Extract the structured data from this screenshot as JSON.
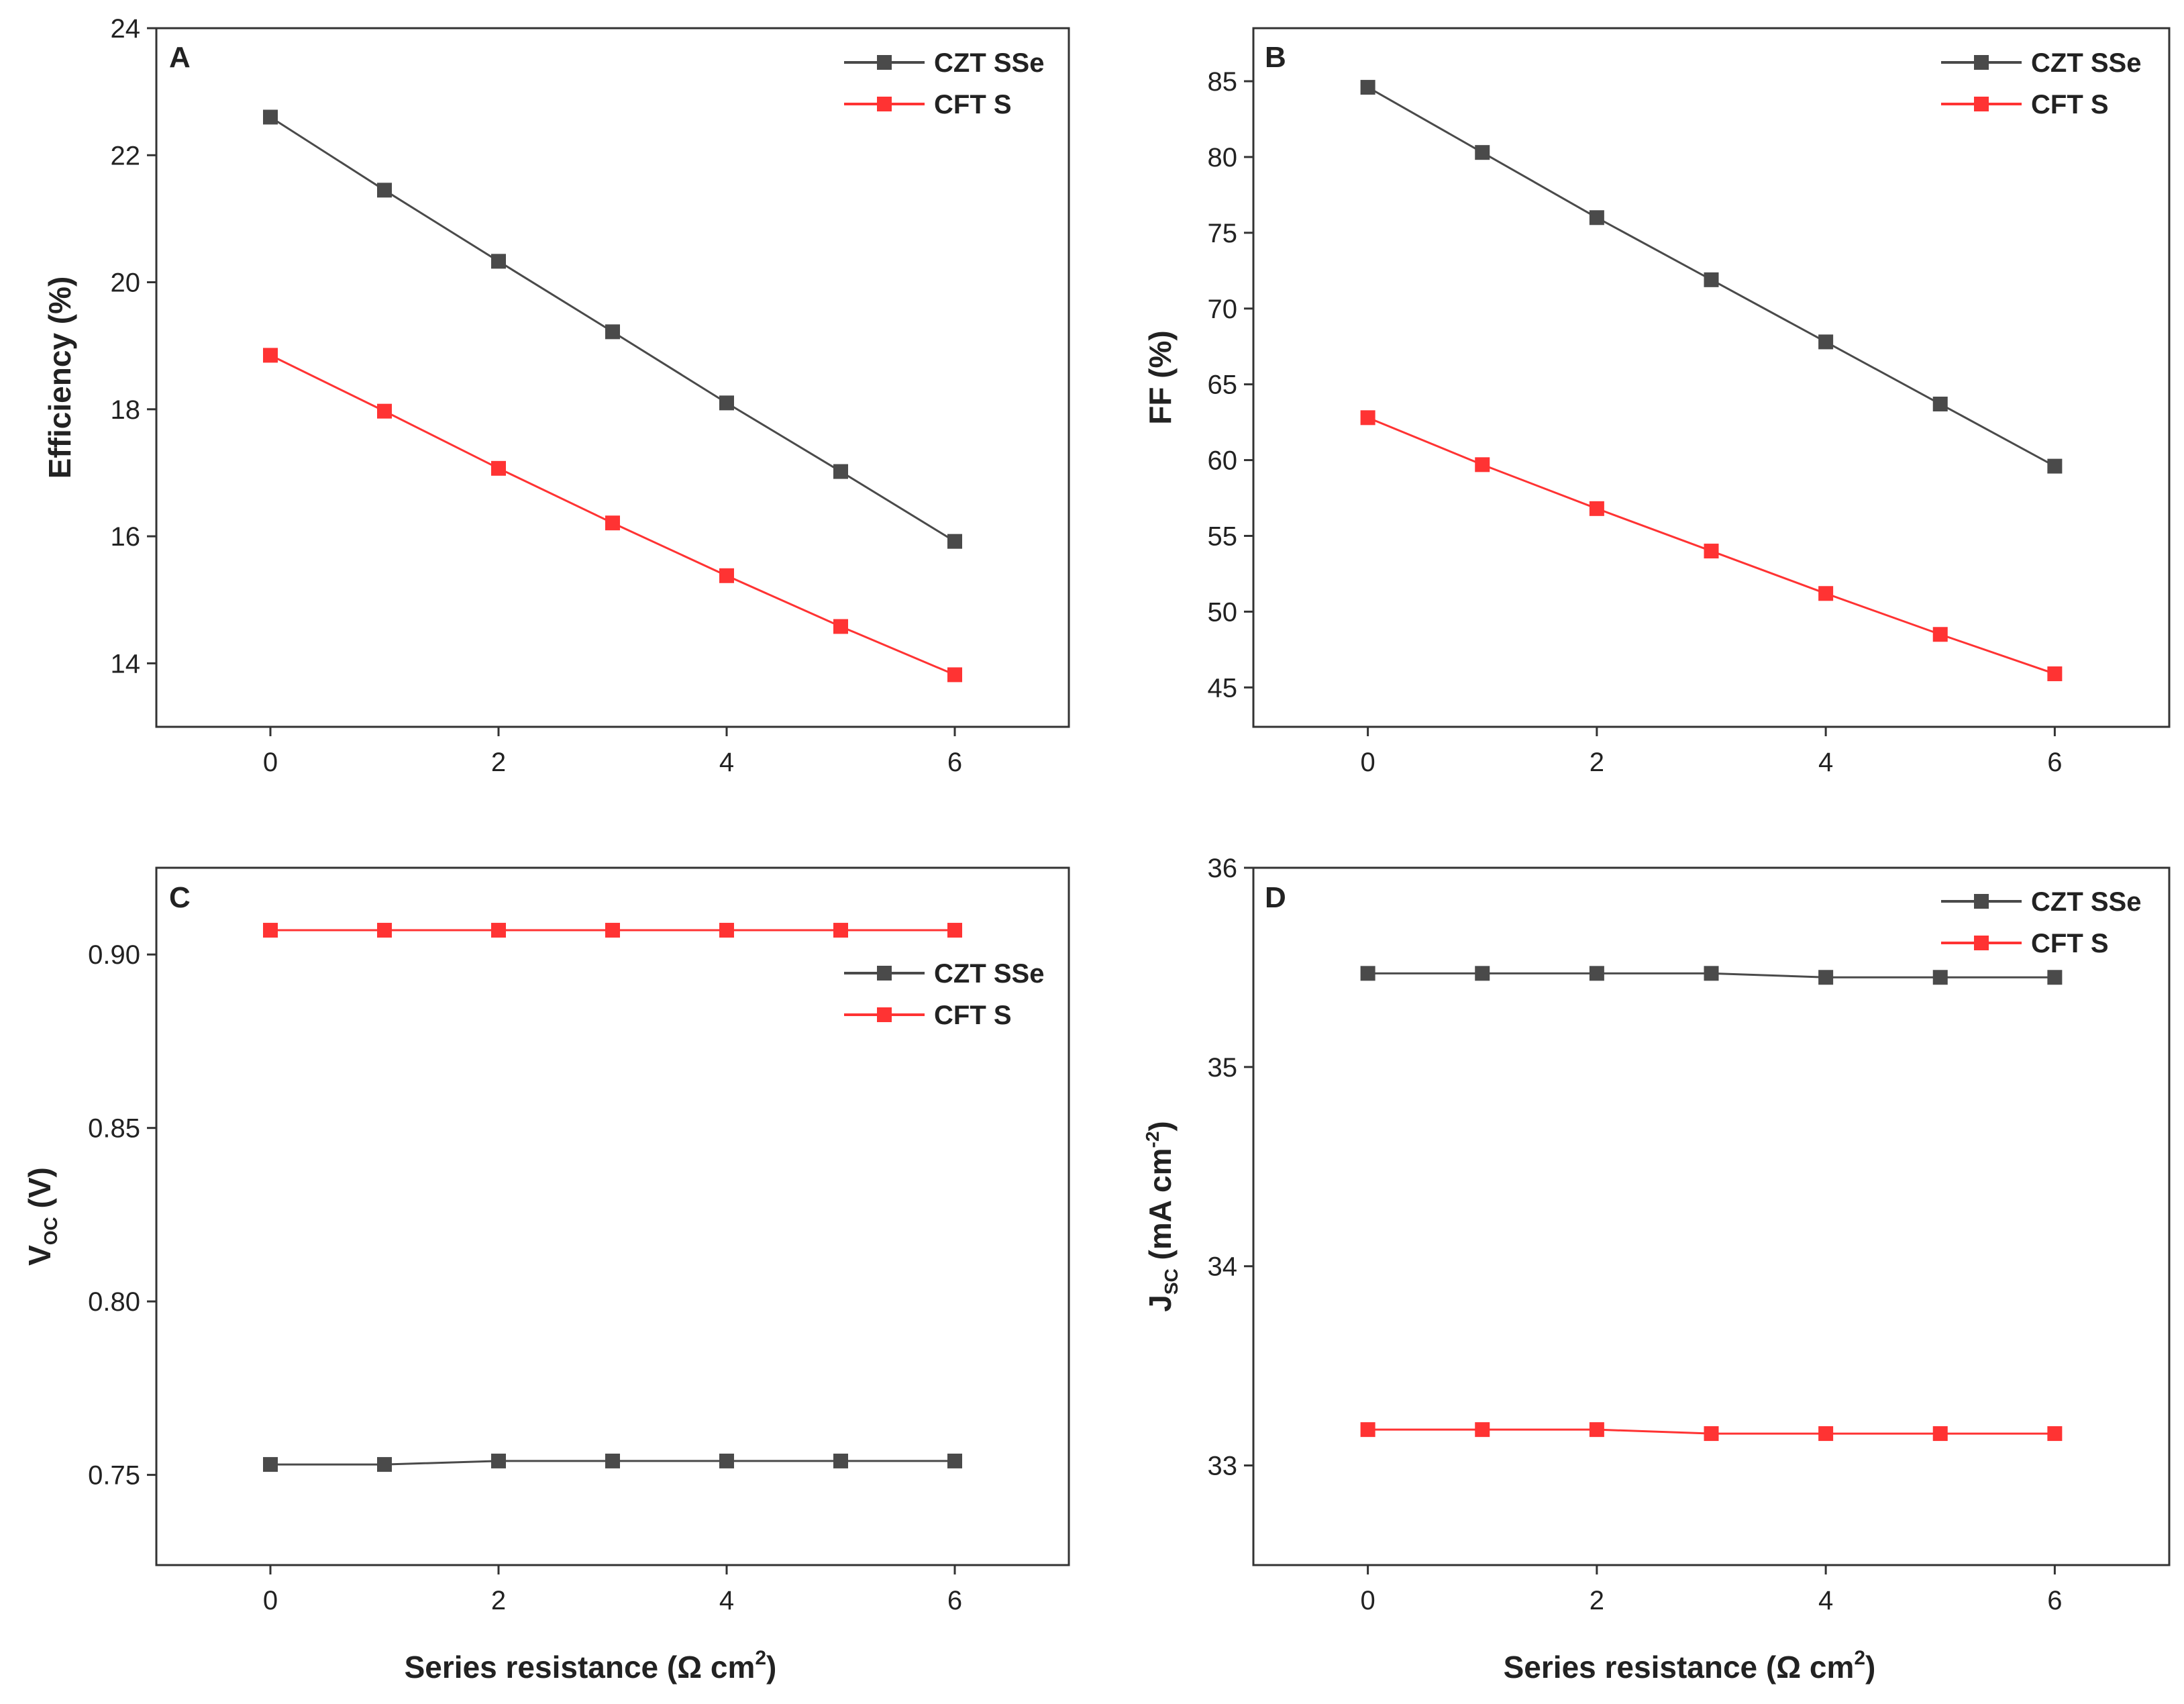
{
  "figure": {
    "xlabel_text": "Series resistance (Ω cm",
    "xlabel_sup": "2",
    "xlabel_close": ")"
  },
  "chart_data": [
    {
      "panel": "A",
      "type": "line",
      "ylabel": "Efficiency (%)",
      "xlabel": "",
      "x": [
        0,
        1,
        2,
        3,
        4,
        5,
        6
      ],
      "xticks": [
        0,
        2,
        4,
        6
      ],
      "xlim": [
        -1,
        7
      ],
      "yticks": [
        14,
        16,
        18,
        20,
        22,
        24
      ],
      "ytick_labels": [
        "14",
        "16",
        "18",
        "20",
        "22",
        "24"
      ],
      "ylim": [
        13,
        24
      ],
      "legend_position": "top-right",
      "series": [
        {
          "name": "CZT SSe",
          "color": "#4a4a4a",
          "values": [
            22.6,
            21.45,
            20.33,
            19.22,
            18.1,
            17.02,
            15.92
          ]
        },
        {
          "name": "CFT S",
          "color": "#ff3333",
          "values": [
            18.85,
            17.97,
            17.07,
            16.21,
            15.38,
            14.58,
            13.82
          ]
        }
      ]
    },
    {
      "panel": "B",
      "type": "line",
      "ylabel": "FF (%)",
      "xlabel": "",
      "x": [
        0,
        1,
        2,
        3,
        4,
        5,
        6
      ],
      "xticks": [
        0,
        2,
        4,
        6
      ],
      "xlim": [
        -1,
        7
      ],
      "yticks": [
        45,
        50,
        55,
        60,
        65,
        70,
        75,
        80,
        85
      ],
      "ytick_labels": [
        "45",
        "50",
        "55",
        "60",
        "65",
        "70",
        "75",
        "80",
        "85"
      ],
      "ylim": [
        42.4,
        88.5
      ],
      "legend_position": "top-right",
      "series": [
        {
          "name": "CZT SSe",
          "color": "#4a4a4a",
          "values": [
            84.6,
            80.3,
            76.0,
            71.9,
            67.8,
            63.7,
            59.6
          ]
        },
        {
          "name": "CFT S",
          "color": "#ff3333",
          "values": [
            62.8,
            59.7,
            56.8,
            54.0,
            51.2,
            48.5,
            45.9
          ]
        }
      ]
    },
    {
      "panel": "C",
      "type": "line",
      "ylabel": "V",
      "ylabel_sub": "OC",
      "ylabel_rest": " (V)",
      "xlabel": "",
      "x": [
        0,
        1,
        2,
        3,
        4,
        5,
        6
      ],
      "xticks": [
        0,
        2,
        4,
        6
      ],
      "xlim": [
        -1,
        7
      ],
      "yticks": [
        0.75,
        0.8,
        0.85,
        0.9
      ],
      "ytick_labels": [
        "0.75",
        "0.80",
        "0.85",
        "0.90"
      ],
      "ylim": [
        0.724,
        0.925
      ],
      "legend_position": "upper-right",
      "series": [
        {
          "name": "CZT SSe",
          "color": "#4a4a4a",
          "values": [
            0.753,
            0.753,
            0.754,
            0.754,
            0.754,
            0.754,
            0.754
          ]
        },
        {
          "name": "CFT S",
          "color": "#ff3333",
          "values": [
            0.907,
            0.907,
            0.907,
            0.907,
            0.907,
            0.907,
            0.907
          ]
        }
      ]
    },
    {
      "panel": "D",
      "type": "line",
      "ylabel": "J",
      "ylabel_sub": "SC",
      "ylabel_rest": " (mA cm",
      "ylabel_sup": "-2",
      "ylabel_close": ")",
      "xlabel": "",
      "x": [
        0,
        1,
        2,
        3,
        4,
        5,
        6
      ],
      "xticks": [
        0,
        2,
        4,
        6
      ],
      "xlim": [
        -1,
        7
      ],
      "yticks": [
        33,
        34,
        35,
        36
      ],
      "ytick_labels": [
        "33",
        "34",
        "35",
        "36"
      ],
      "ylim": [
        32.5,
        36.0
      ],
      "legend_position": "top-right",
      "series": [
        {
          "name": "CZT SSe",
          "color": "#4a4a4a",
          "values": [
            35.47,
            35.47,
            35.47,
            35.47,
            35.45,
            35.45,
            35.45
          ]
        },
        {
          "name": "CFT S",
          "color": "#ff3333",
          "values": [
            33.18,
            33.18,
            33.18,
            33.16,
            33.16,
            33.16,
            33.16
          ]
        }
      ]
    }
  ]
}
